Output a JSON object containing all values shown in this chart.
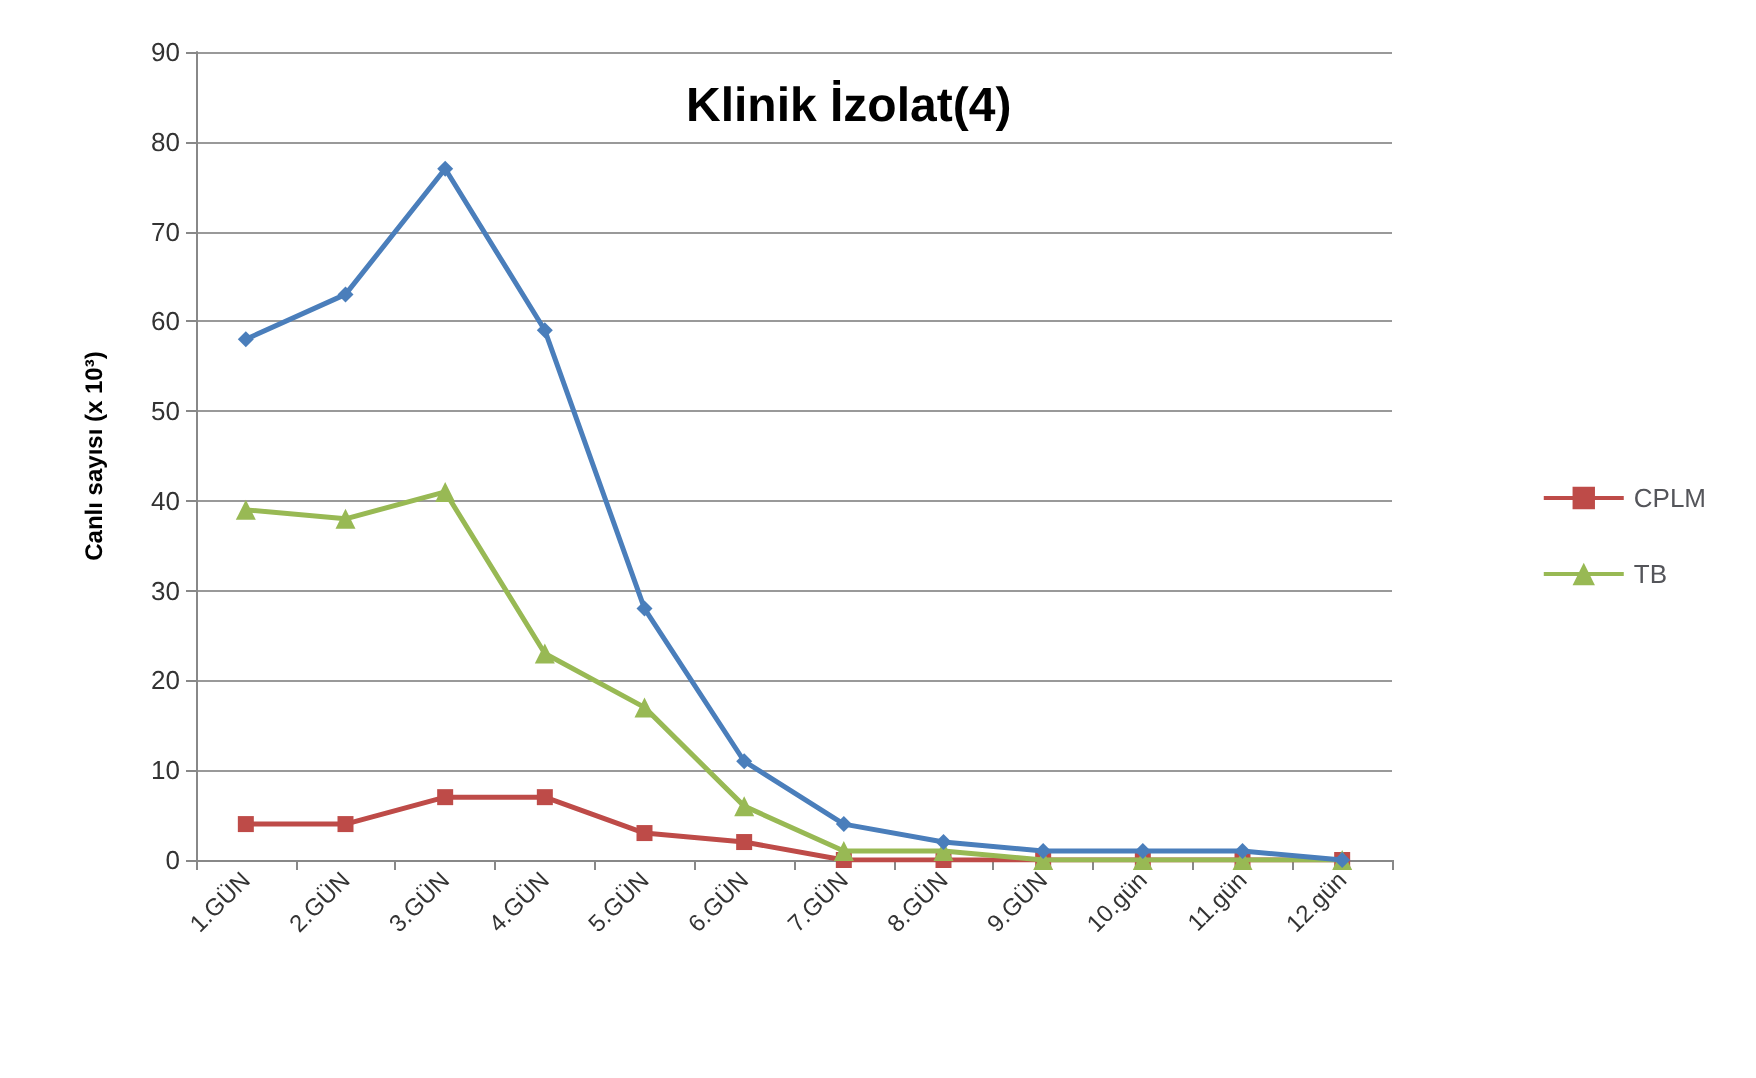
{
  "chart_data": {
    "type": "line",
    "title": "Klinik İzolat(4)",
    "ylabel": "Canlı sayısı (x 10³)",
    "categories": [
      "1.GÜN",
      "2.GÜN",
      "3.GÜN",
      "4.GÜN",
      "5.GÜN",
      "6.GÜN",
      "7.GÜN",
      "8.GÜN",
      "9.GÜN",
      "10.gün",
      "11.gün",
      "12.gün"
    ],
    "series": [
      {
        "color": "#4a7ebb",
        "marker": "diamond",
        "values": [
          58,
          63,
          77,
          59,
          28,
          11,
          4,
          2,
          1,
          1,
          1,
          0
        ]
      },
      {
        "name": "CPLM",
        "color": "#be4b48",
        "marker": "square",
        "values": [
          4,
          4,
          7,
          7,
          3,
          2,
          0,
          0,
          0,
          0,
          0,
          0
        ]
      },
      {
        "name": "TB",
        "color": "#98b954",
        "marker": "triangle",
        "values": [
          39,
          38,
          41,
          23,
          17,
          6,
          1,
          1,
          0,
          0,
          0,
          0
        ]
      }
    ],
    "ylim": [
      0,
      90
    ],
    "yticks": [
      0,
      10,
      20,
      30,
      40,
      50,
      60,
      70,
      80,
      90
    ],
    "grid": "y",
    "legend": "right",
    "line_style": "solid"
  }
}
